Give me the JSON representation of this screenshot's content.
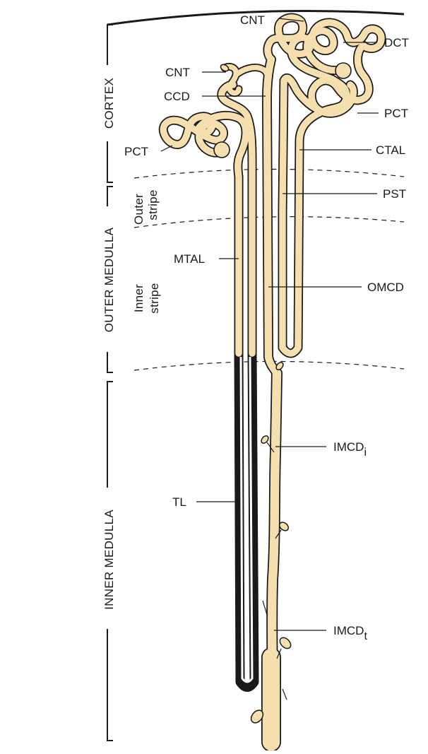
{
  "zones": {
    "cortex": "CORTEX",
    "outer_medulla": "OUTER MEDULLA",
    "inner_medulla": "INNER MEDULLA",
    "outer_stripe_line1": "Outer",
    "outer_stripe_line2": "stripe",
    "inner_stripe_line1": "Inner",
    "inner_stripe_line2": "stripe"
  },
  "labels": {
    "cnt_top": "CNT",
    "dct": "DCT",
    "cnt_left": "CNT",
    "ccd": "CCD",
    "pct_right": "PCT",
    "pct_left": "PCT",
    "ctal": "CTAL",
    "pst": "PST",
    "mtal": "MTAL",
    "omcd": "OMCD",
    "imcd_i_main": "IMCD",
    "imcd_i_sub": "i",
    "tl": "TL",
    "imcd_t_main": "IMCD",
    "imcd_t_sub": "t"
  },
  "colors": {
    "tubule_fill": "#f6dfae",
    "outline": "#1a1a1a",
    "background": "#ffffff"
  }
}
